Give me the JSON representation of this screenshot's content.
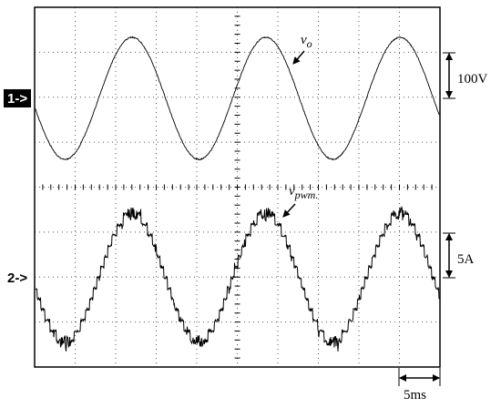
{
  "markers": [
    "1->",
    "2->"
  ],
  "traces": [
    {
      "label": "v",
      "subscript": "o"
    },
    {
      "label": "v",
      "subscript": "pwm."
    }
  ],
  "scales": [
    "100V",
    "5A",
    "5ms"
  ]
}
